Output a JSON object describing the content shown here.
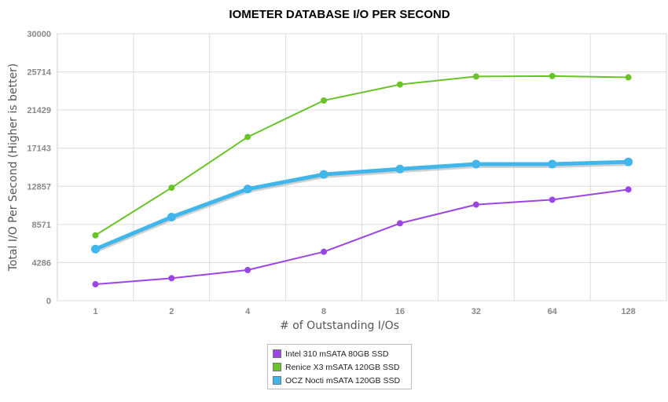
{
  "chart_data": {
    "type": "line",
    "title": "IOMETER DATABASE I/O PER SECOND",
    "xlabel": "# of Outstanding I/Os",
    "ylabel": "Total I/O Per Second (Higher is better)",
    "categories": [
      "1",
      "2",
      "4",
      "8",
      "16",
      "32",
      "64",
      "128"
    ],
    "ylim": [
      0,
      30000
    ],
    "yticks": [
      "0",
      "4286",
      "8571",
      "12857",
      "17143",
      "21429",
      "25714",
      "30000"
    ],
    "grid": true,
    "legend_position": "bottom-center",
    "series": [
      {
        "name": "Intel 310 mSATA 80GB SSD",
        "color": "#9b45e4",
        "values": [
          1850,
          2530,
          3450,
          5500,
          8700,
          10800,
          11350,
          12500
        ]
      },
      {
        "name": "Renice X3 mSATA 120GB SSD",
        "color": "#6bc32a",
        "values": [
          7350,
          12700,
          18400,
          22500,
          24300,
          25200,
          25250,
          25100
        ]
      },
      {
        "name": "OCZ Nocti mSATA 120GB SSD",
        "color": "#41b6ea",
        "values": [
          5800,
          9400,
          12550,
          14200,
          14800,
          15350,
          15350,
          15600
        ]
      }
    ]
  }
}
